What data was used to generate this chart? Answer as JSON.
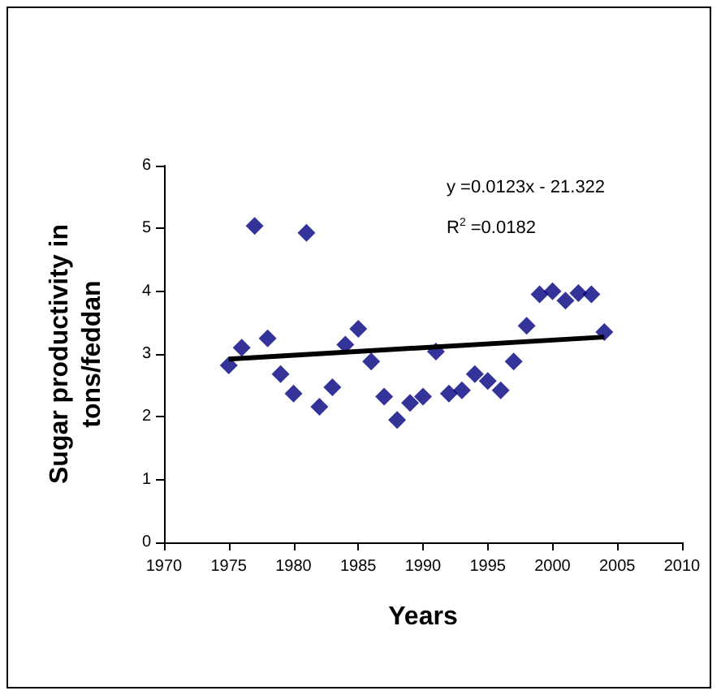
{
  "chart_data": {
    "type": "scatter",
    "xlabel": "Years",
    "ylabel": "Sugar productivity in\ntons/feddan",
    "annotations": [
      "y =0.0123x - 21.322",
      "R$^{2}$ =0.0182"
    ],
    "xlim": [
      1970,
      2010
    ],
    "xticks": [
      1970,
      1975,
      1980,
      1985,
      1990,
      1995,
      2000,
      2005,
      2010
    ],
    "ylim": [
      0,
      6
    ],
    "yticks": [
      0,
      1,
      2,
      3,
      4,
      5,
      6
    ],
    "grid": false,
    "series": [
      {
        "type": "scatter",
        "color": "#000080",
        "marker": "diamond",
        "x": [
          1975,
          1976,
          1977,
          1978,
          1979,
          1980,
          1981,
          1982,
          1983,
          1984,
          1985,
          1986,
          1987,
          1988,
          1989,
          1990,
          1991,
          1992,
          1993,
          1994,
          1995,
          1996,
          1997,
          1998,
          1999,
          2000,
          2001,
          2002,
          2003,
          2004
        ],
        "values": [
          2.82,
          3.1,
          5.04,
          3.25,
          2.68,
          2.37,
          4.93,
          2.16,
          2.47,
          3.15,
          3.4,
          2.88,
          2.32,
          1.95,
          2.22,
          2.32,
          3.04,
          2.37,
          2.42,
          2.68,
          2.57,
          2.42,
          2.88,
          3.45,
          3.95,
          4.0,
          3.85,
          3.97,
          3.95,
          3.35
        ]
      },
      {
        "type": "line",
        "color": "#000000",
        "marker": "none",
        "line_style": "solid",
        "x": [
          1975,
          2004
        ],
        "values": [
          2.92,
          3.27
        ]
      }
    ]
  }
}
